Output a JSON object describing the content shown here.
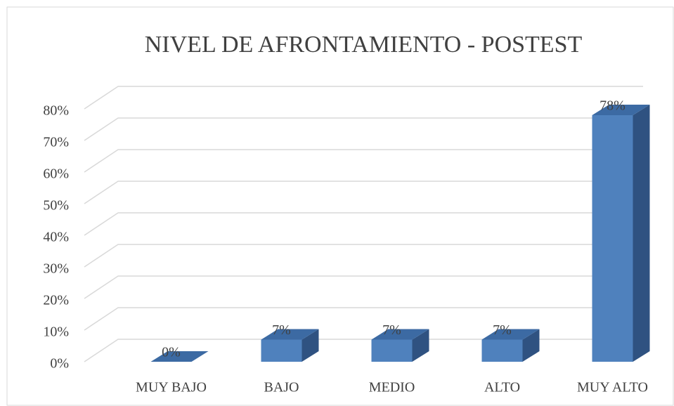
{
  "chart_data": {
    "type": "bar3d",
    "title": "NIVEL DE AFRONTAMIENTO - POSTEST",
    "categories": [
      "MUY BAJO",
      "BAJO",
      "MEDIO",
      "ALTO",
      "MUY ALTO"
    ],
    "values": [
      0,
      7,
      7,
      7,
      78
    ],
    "value_labels": [
      "0%",
      "7%",
      "7%",
      "7%",
      "78%"
    ],
    "color": "#4f81bd",
    "ylim": [
      0,
      80
    ],
    "yticks": [
      {
        "value": 0,
        "label": "0%"
      },
      {
        "value": 10,
        "label": "10%"
      },
      {
        "value": 20,
        "label": "20%"
      },
      {
        "value": 30,
        "label": "30%"
      },
      {
        "value": 40,
        "label": "40%"
      },
      {
        "value": 50,
        "label": "50%"
      },
      {
        "value": 60,
        "label": "60%"
      },
      {
        "value": 70,
        "label": "70%"
      },
      {
        "value": 80,
        "label": "80%"
      }
    ],
    "grid": true
  }
}
